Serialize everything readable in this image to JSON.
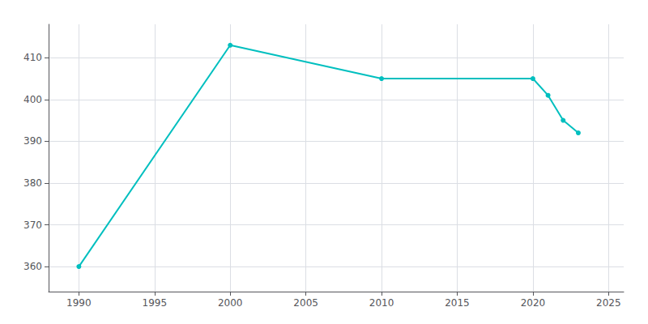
{
  "chart_data": {
    "type": "line",
    "x": [
      1990,
      2000,
      2010,
      2020,
      2021,
      2022,
      2023
    ],
    "values": [
      360,
      413,
      405,
      405,
      401,
      395,
      392
    ],
    "color": "#00BFBF",
    "marker": "circle",
    "xlim": [
      1988,
      2026
    ],
    "ylim": [
      354,
      418
    ],
    "xticks": [
      1990,
      1995,
      2000,
      2005,
      2010,
      2015,
      2020,
      2025
    ],
    "yticks": [
      360,
      370,
      380,
      390,
      400,
      410
    ],
    "grid": true
  }
}
